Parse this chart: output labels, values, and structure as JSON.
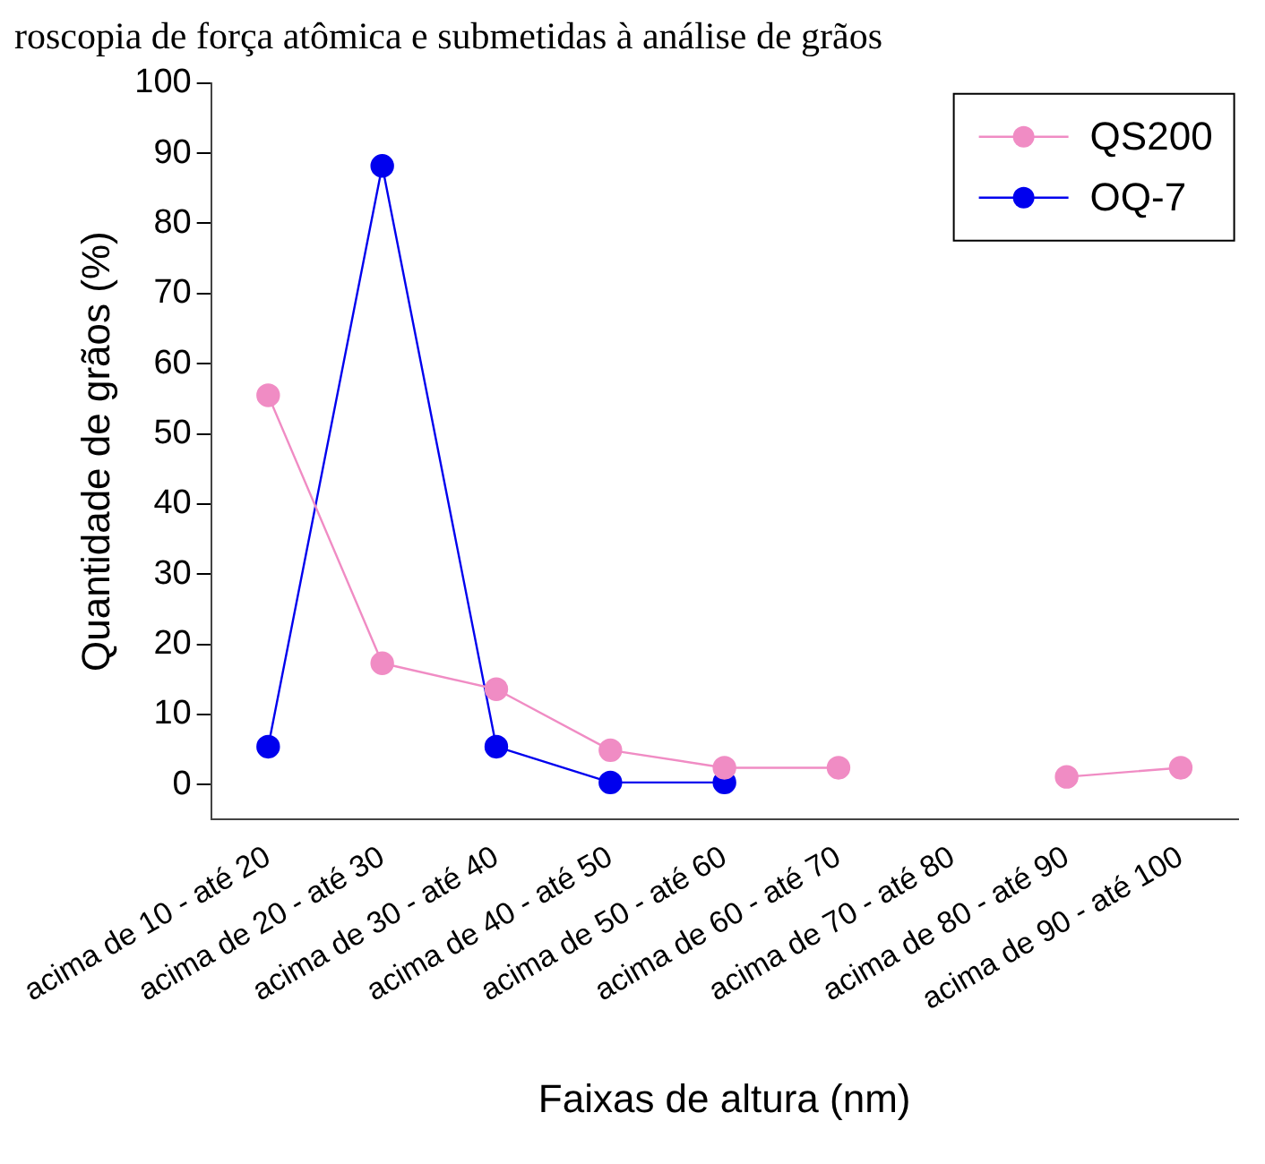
{
  "chart_data": {
    "type": "line",
    "title": "roscopia de força atômica e submetidas à análise de grãos",
    "xlabel": "Faixas de altura (nm)",
    "ylabel": "Quantidade de grãos (%)",
    "categories": [
      "acima de 10 - até 20",
      "acima de 20 - até 30",
      "acima de 30 - até 40",
      "acima de 40 - até 50",
      "acima de 50 - até 60",
      "acima de 60 - até 70",
      "acima de 70 - até 80",
      "acima de 80 - até 90",
      "acima de 90 - até 100"
    ],
    "series": [
      {
        "name": "QS200",
        "color": "#f08cc4",
        "values": [
          55.5,
          17.3,
          13.6,
          4.9,
          2.4,
          2.4,
          null,
          1.1,
          2.4
        ]
      },
      {
        "name": "OQ-7",
        "color": "#0000ee",
        "values": [
          5.4,
          88.2,
          5.4,
          0.3,
          0.3,
          null,
          null,
          null,
          null
        ]
      }
    ],
    "ylim": [
      -5,
      100
    ],
    "yticks": [
      0,
      10,
      20,
      30,
      40,
      50,
      60,
      70,
      80,
      90,
      100
    ],
    "grid": false,
    "legend": "top right",
    "marker": "circle",
    "line_style": "solid"
  }
}
